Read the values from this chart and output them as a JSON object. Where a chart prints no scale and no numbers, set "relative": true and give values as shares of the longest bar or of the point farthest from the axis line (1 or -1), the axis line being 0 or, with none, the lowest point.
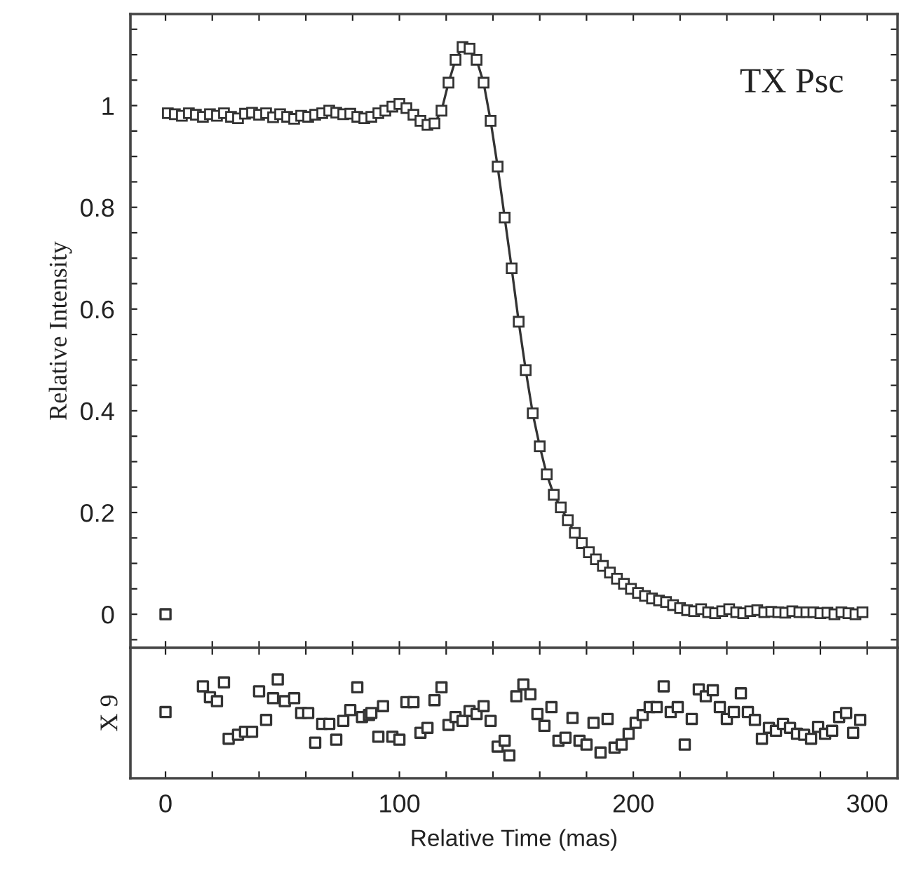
{
  "chart_data": [
    {
      "type": "line",
      "ylabel": "Relative Intensity",
      "annotations": [
        "TX Psc"
      ],
      "xlim": [
        -15,
        313
      ],
      "ylim": [
        -0.066,
        1.18
      ],
      "xticks": [
        0,
        {
          "value": 20,
          "label": null
        },
        {
          "value": 40,
          "label": null
        },
        {
          "value": 60,
          "label": null
        },
        {
          "value": 80,
          "label": null
        },
        100,
        {
          "value": 120,
          "label": null
        },
        {
          "value": 140,
          "label": null
        },
        {
          "value": 160,
          "label": null
        },
        {
          "value": 180,
          "label": null
        },
        200,
        {
          "value": 220,
          "label": null
        },
        {
          "value": 240,
          "label": null
        },
        {
          "value": 260,
          "label": null
        },
        {
          "value": 280,
          "label": null
        },
        300
      ],
      "yticks": [
        {
          "value": -0.05,
          "label": null
        },
        0,
        {
          "value": 0.05,
          "label": null
        },
        {
          "value": 0.1,
          "label": null
        },
        {
          "value": 0.15,
          "label": null
        },
        0.2,
        {
          "value": 0.25,
          "label": null
        },
        {
          "value": 0.3,
          "label": null
        },
        {
          "value": 0.35,
          "label": null
        },
        0.4,
        {
          "value": 0.45,
          "label": null
        },
        {
          "value": 0.5,
          "label": null
        },
        {
          "value": 0.55,
          "label": null
        },
        0.6,
        {
          "value": 0.65,
          "label": null
        },
        {
          "value": 0.7,
          "label": null
        },
        {
          "value": 0.75,
          "label": null
        },
        0.8,
        {
          "value": 0.85,
          "label": null
        },
        {
          "value": 0.9,
          "label": null
        },
        {
          "value": 0.95,
          "label": null
        },
        1,
        {
          "value": 1.05,
          "label": null
        },
        {
          "value": 1.1,
          "label": null
        },
        {
          "value": 1.15,
          "label": null
        }
      ],
      "tick_labels": "y",
      "grid": false,
      "legend": false,
      "series": [
        {
          "marker": "square",
          "line_style": "solid",
          "color": "#333333",
          "x": [
            1,
            4,
            7,
            10,
            13,
            16,
            19,
            22,
            25,
            28,
            31,
            34,
            37,
            40,
            43,
            46,
            49,
            52,
            55,
            58,
            61,
            64,
            67,
            70,
            73,
            76,
            79,
            82,
            85,
            88,
            91,
            94,
            97,
            100,
            103,
            106,
            109,
            112,
            115,
            118,
            121,
            124,
            127,
            130,
            133,
            136,
            139,
            142,
            145,
            148,
            151,
            154,
            157,
            160,
            163,
            166,
            169,
            172,
            175,
            178,
            181,
            184,
            187,
            190,
            193,
            196,
            199,
            202,
            205,
            208,
            211,
            214,
            217,
            220,
            223,
            226,
            229,
            232,
            235,
            238,
            241,
            244,
            247,
            250,
            253,
            256,
            259,
            262,
            265,
            268,
            271,
            274,
            277,
            280,
            283,
            286,
            289,
            292,
            295,
            298
          ],
          "values": [
            0.985,
            0.983,
            0.98,
            0.985,
            0.982,
            0.978,
            0.983,
            0.98,
            0.985,
            0.978,
            0.975,
            0.984,
            0.986,
            0.982,
            0.985,
            0.977,
            0.983,
            0.978,
            0.974,
            0.98,
            0.978,
            0.982,
            0.985,
            0.99,
            0.986,
            0.983,
            0.984,
            0.978,
            0.975,
            0.978,
            0.985,
            0.99,
            0.998,
            1.003,
            0.995,
            0.982,
            0.97,
            0.962,
            0.965,
            0.99,
            1.045,
            1.09,
            1.115,
            1.112,
            1.09,
            1.045,
            0.97,
            0.88,
            0.78,
            0.68,
            0.575,
            0.48,
            0.395,
            0.33,
            0.275,
            0.235,
            0.21,
            0.185,
            0.16,
            0.14,
            0.122,
            0.108,
            0.095,
            0.082,
            0.07,
            0.06,
            0.05,
            0.042,
            0.036,
            0.031,
            0.027,
            0.024,
            0.018,
            0.012,
            0.008,
            0.006,
            0.01,
            0.004,
            0.002,
            0.006,
            0.01,
            0.004,
            0.002,
            0.006,
            0.008,
            0.004,
            0.005,
            0.004,
            0.003,
            0.006,
            0.004,
            0.004,
            0.004,
            0.002,
            0.003,
            0.0,
            0.004,
            0.002,
            0.0,
            0.004
          ]
        },
        {
          "type": "scatter",
          "marker": "square",
          "color": "#333333",
          "x": [
            0
          ],
          "values": [
            0
          ]
        }
      ]
    },
    {
      "type": "scatter",
      "ylabel": "X 9",
      "xlabel": "Relative Time (mas)",
      "relative": true,
      "xlim": [
        -15,
        313
      ],
      "xticks": [
        0,
        {
          "value": 20,
          "label": null
        },
        {
          "value": 40,
          "label": null
        },
        {
          "value": 60,
          "label": null
        },
        {
          "value": 80,
          "label": null
        },
        100,
        {
          "value": 120,
          "label": null
        },
        {
          "value": 140,
          "label": null
        },
        {
          "value": 160,
          "label": null
        },
        {
          "value": 180,
          "label": null
        },
        200,
        {
          "value": 220,
          "label": null
        },
        {
          "value": 240,
          "label": null
        },
        {
          "value": 260,
          "label": null
        },
        {
          "value": 280,
          "label": null
        },
        300
      ],
      "tick_labels": "x",
      "grid": false,
      "legend": false,
      "series": [
        {
          "marker": "square",
          "color": "#333333",
          "x": [
            0,
            16,
            19,
            22,
            25,
            27,
            31,
            34,
            37,
            40,
            43,
            46,
            48,
            51,
            55,
            58,
            61,
            64,
            67,
            70,
            73,
            76,
            79,
            82,
            84,
            87,
            88,
            91,
            93,
            97,
            100,
            103,
            106,
            109,
            112,
            115,
            118,
            121,
            124,
            127,
            130,
            133,
            136,
            139,
            142,
            145,
            147,
            150,
            153,
            156,
            159,
            162,
            165,
            168,
            171,
            174,
            177,
            180,
            183,
            186,
            189,
            192,
            195,
            198,
            201,
            204,
            207,
            210,
            213,
            216,
            219,
            222,
            225,
            228,
            231,
            234,
            237,
            240,
            243,
            246,
            249,
            252,
            255,
            258,
            261,
            264,
            267,
            270,
            273,
            276,
            279,
            282,
            285,
            288,
            291,
            294,
            297
          ],
          "values": [
            0.67,
            0.93,
            0.82,
            0.78,
            0.97,
            0.4,
            0.44,
            0.47,
            0.47,
            0.88,
            0.59,
            0.81,
            1.0,
            0.78,
            0.81,
            0.66,
            0.66,
            0.36,
            0.55,
            0.55,
            0.39,
            0.58,
            0.69,
            0.92,
            0.62,
            0.64,
            0.66,
            0.42,
            0.73,
            0.42,
            0.39,
            0.77,
            0.77,
            0.46,
            0.51,
            0.79,
            0.92,
            0.54,
            0.62,
            0.58,
            0.68,
            0.65,
            0.73,
            0.58,
            0.32,
            0.38,
            0.23,
            0.83,
            0.95,
            0.85,
            0.65,
            0.53,
            0.72,
            0.38,
            0.41,
            0.61,
            0.38,
            0.34,
            0.56,
            0.26,
            0.6,
            0.31,
            0.34,
            0.45,
            0.56,
            0.64,
            0.72,
            0.72,
            0.93,
            0.67,
            0.72,
            0.34,
            0.6,
            0.9,
            0.83,
            0.89,
            0.72,
            0.6,
            0.67,
            0.86,
            0.67,
            0.59,
            0.4,
            0.51,
            0.48,
            0.55,
            0.51,
            0.45,
            0.44,
            0.4,
            0.52,
            0.45,
            0.48,
            0.62,
            0.66,
            0.46,
            0.59
          ]
        }
      ]
    }
  ]
}
